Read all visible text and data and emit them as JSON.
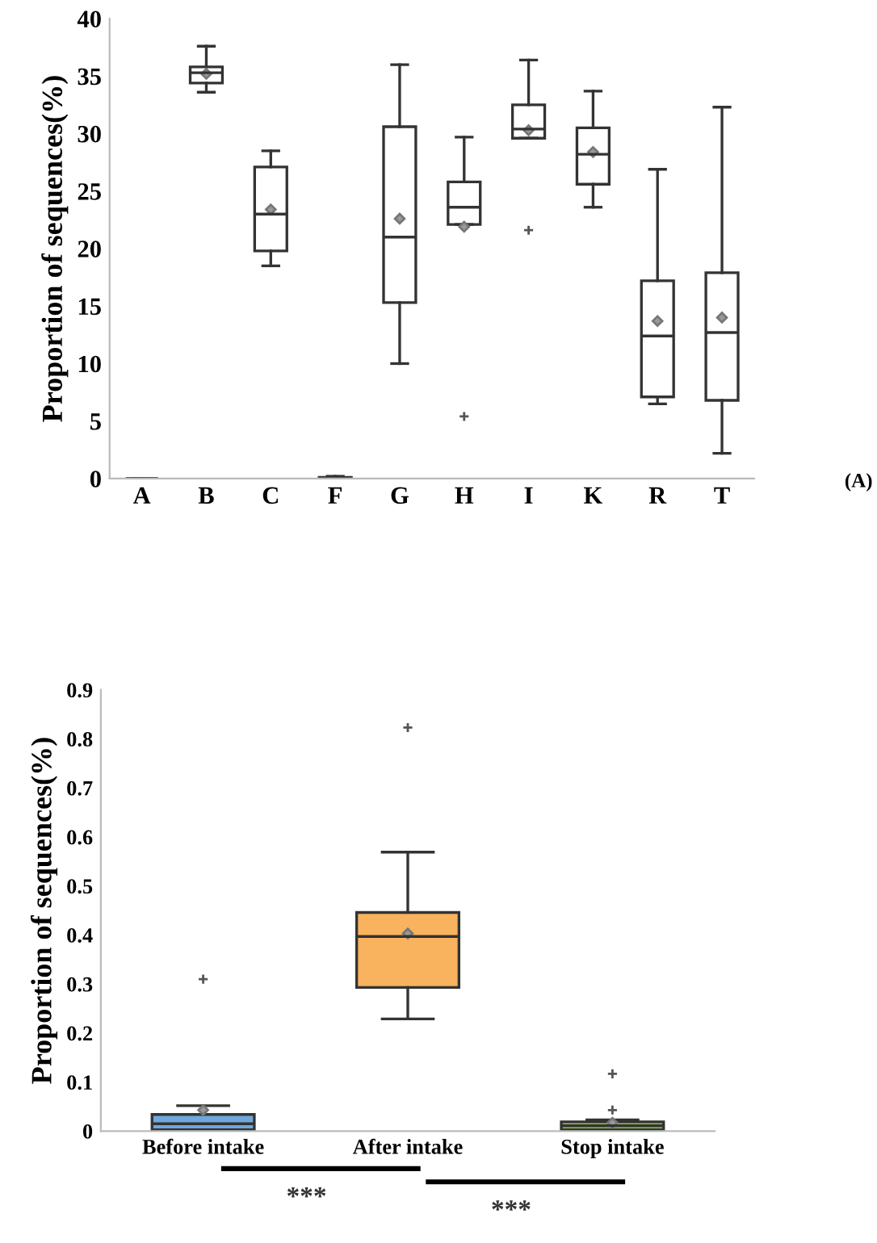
{
  "chart_data": [
    {
      "type": "box",
      "ylabel": "Proportion of sequences(%)",
      "categories": [
        "A",
        "B",
        "C",
        "F",
        "G",
        "H",
        "I",
        "K",
        "R",
        "T"
      ],
      "ylim": [
        0,
        40
      ],
      "yticks": [
        0,
        5,
        10,
        15,
        20,
        25,
        30,
        35,
        40
      ],
      "grid": false,
      "annotations": [
        "(A)"
      ],
      "boxes": [
        {
          "low": 0,
          "q1": 0,
          "median": 0,
          "q3": 0,
          "high": 0
        },
        {
          "low": 33.6,
          "q1": 34.4,
          "median": 35.3,
          "q3": 35.8,
          "high": 37.6,
          "mean": 35.2
        },
        {
          "low": 18.5,
          "q1": 19.8,
          "median": 23.0,
          "q3": 27.1,
          "high": 28.5,
          "mean": 23.4
        },
        {
          "low": 0,
          "q1": 0,
          "median": 0,
          "q3": 0.1,
          "high": 0.2
        },
        {
          "low": 10.0,
          "q1": 15.3,
          "median": 21.0,
          "q3": 30.6,
          "high": 36.0,
          "mean": 22.6
        },
        {
          "low": 22.1,
          "q1": 22.1,
          "median": 23.6,
          "q3": 25.8,
          "high": 29.7,
          "mean": 21.9,
          "outliers": [
            5.4
          ]
        },
        {
          "low": 29.6,
          "q1": 29.6,
          "median": 30.4,
          "q3": 32.5,
          "high": 36.4,
          "mean": 30.3,
          "outliers": [
            21.6
          ]
        },
        {
          "low": 23.6,
          "q1": 25.6,
          "median": 28.2,
          "q3": 30.5,
          "high": 33.7,
          "mean": 28.4
        },
        {
          "low": 6.5,
          "q1": 7.1,
          "median": 12.4,
          "q3": 17.2,
          "high": 26.9,
          "mean": 13.7
        },
        {
          "low": 2.2,
          "q1": 6.8,
          "median": 12.7,
          "q3": 17.9,
          "high": 32.3,
          "mean": 14.0
        }
      ]
    },
    {
      "type": "box",
      "ylabel": "Proportion of sequences(%)",
      "categories": [
        "Before intake",
        "After intake",
        "Stop intake"
      ],
      "colors": [
        "#6fa8dc",
        "#f9b35e",
        "#93c152"
      ],
      "ylim": [
        0,
        0.9
      ],
      "yticks": [
        0,
        0.1,
        0.2,
        0.3,
        0.4,
        0.5,
        0.6,
        0.7,
        0.8,
        0.9
      ],
      "grid": false,
      "annotations": [
        "***",
        "***"
      ],
      "boxes": [
        {
          "low": 0.003,
          "q1": 0.003,
          "median": 0.015,
          "q3": 0.034,
          "high": 0.052,
          "mean": 0.043,
          "outliers": [
            0.31
          ]
        },
        {
          "low": 0.229,
          "q1": 0.293,
          "median": 0.397,
          "q3": 0.446,
          "high": 0.569,
          "mean": 0.403,
          "outliers": [
            0.823
          ]
        },
        {
          "low": 0.003,
          "q1": 0.003,
          "median": 0.011,
          "q3": 0.019,
          "high": 0.023,
          "mean": 0.017,
          "outliers": [
            0.117,
            0.043
          ]
        }
      ]
    }
  ]
}
